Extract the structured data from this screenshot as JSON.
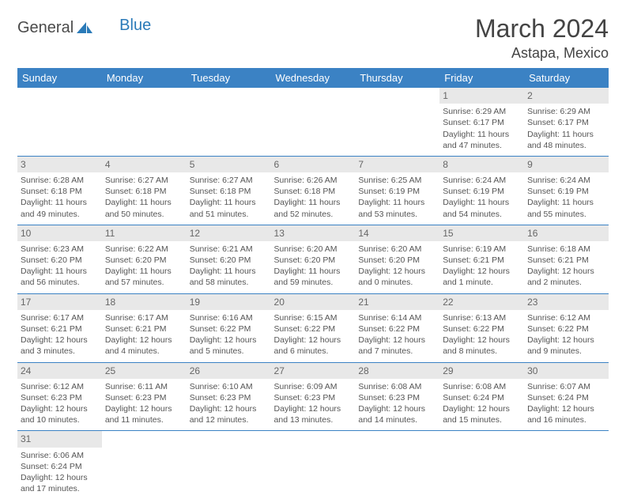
{
  "logo": {
    "text1": "General",
    "text2": "Blue",
    "shape_color": "#2a7ab8"
  },
  "title": "March 2024",
  "location": "Astapa, Mexico",
  "colors": {
    "header_bg": "#3b82c4",
    "header_fg": "#ffffff",
    "daynum_bg": "#e8e8e8",
    "row_border": "#3b82c4",
    "text": "#555555"
  },
  "weekdays": [
    "Sunday",
    "Monday",
    "Tuesday",
    "Wednesday",
    "Thursday",
    "Friday",
    "Saturday"
  ],
  "weeks": [
    [
      null,
      null,
      null,
      null,
      null,
      {
        "n": "1",
        "sr": "Sunrise: 6:29 AM",
        "ss": "Sunset: 6:17 PM",
        "d1": "Daylight: 11 hours",
        "d2": "and 47 minutes."
      },
      {
        "n": "2",
        "sr": "Sunrise: 6:29 AM",
        "ss": "Sunset: 6:17 PM",
        "d1": "Daylight: 11 hours",
        "d2": "and 48 minutes."
      }
    ],
    [
      {
        "n": "3",
        "sr": "Sunrise: 6:28 AM",
        "ss": "Sunset: 6:18 PM",
        "d1": "Daylight: 11 hours",
        "d2": "and 49 minutes."
      },
      {
        "n": "4",
        "sr": "Sunrise: 6:27 AM",
        "ss": "Sunset: 6:18 PM",
        "d1": "Daylight: 11 hours",
        "d2": "and 50 minutes."
      },
      {
        "n": "5",
        "sr": "Sunrise: 6:27 AM",
        "ss": "Sunset: 6:18 PM",
        "d1": "Daylight: 11 hours",
        "d2": "and 51 minutes."
      },
      {
        "n": "6",
        "sr": "Sunrise: 6:26 AM",
        "ss": "Sunset: 6:18 PM",
        "d1": "Daylight: 11 hours",
        "d2": "and 52 minutes."
      },
      {
        "n": "7",
        "sr": "Sunrise: 6:25 AM",
        "ss": "Sunset: 6:19 PM",
        "d1": "Daylight: 11 hours",
        "d2": "and 53 minutes."
      },
      {
        "n": "8",
        "sr": "Sunrise: 6:24 AM",
        "ss": "Sunset: 6:19 PM",
        "d1": "Daylight: 11 hours",
        "d2": "and 54 minutes."
      },
      {
        "n": "9",
        "sr": "Sunrise: 6:24 AM",
        "ss": "Sunset: 6:19 PM",
        "d1": "Daylight: 11 hours",
        "d2": "and 55 minutes."
      }
    ],
    [
      {
        "n": "10",
        "sr": "Sunrise: 6:23 AM",
        "ss": "Sunset: 6:20 PM",
        "d1": "Daylight: 11 hours",
        "d2": "and 56 minutes."
      },
      {
        "n": "11",
        "sr": "Sunrise: 6:22 AM",
        "ss": "Sunset: 6:20 PM",
        "d1": "Daylight: 11 hours",
        "d2": "and 57 minutes."
      },
      {
        "n": "12",
        "sr": "Sunrise: 6:21 AM",
        "ss": "Sunset: 6:20 PM",
        "d1": "Daylight: 11 hours",
        "d2": "and 58 minutes."
      },
      {
        "n": "13",
        "sr": "Sunrise: 6:20 AM",
        "ss": "Sunset: 6:20 PM",
        "d1": "Daylight: 11 hours",
        "d2": "and 59 minutes."
      },
      {
        "n": "14",
        "sr": "Sunrise: 6:20 AM",
        "ss": "Sunset: 6:20 PM",
        "d1": "Daylight: 12 hours",
        "d2": "and 0 minutes."
      },
      {
        "n": "15",
        "sr": "Sunrise: 6:19 AM",
        "ss": "Sunset: 6:21 PM",
        "d1": "Daylight: 12 hours",
        "d2": "and 1 minute."
      },
      {
        "n": "16",
        "sr": "Sunrise: 6:18 AM",
        "ss": "Sunset: 6:21 PM",
        "d1": "Daylight: 12 hours",
        "d2": "and 2 minutes."
      }
    ],
    [
      {
        "n": "17",
        "sr": "Sunrise: 6:17 AM",
        "ss": "Sunset: 6:21 PM",
        "d1": "Daylight: 12 hours",
        "d2": "and 3 minutes."
      },
      {
        "n": "18",
        "sr": "Sunrise: 6:17 AM",
        "ss": "Sunset: 6:21 PM",
        "d1": "Daylight: 12 hours",
        "d2": "and 4 minutes."
      },
      {
        "n": "19",
        "sr": "Sunrise: 6:16 AM",
        "ss": "Sunset: 6:22 PM",
        "d1": "Daylight: 12 hours",
        "d2": "and 5 minutes."
      },
      {
        "n": "20",
        "sr": "Sunrise: 6:15 AM",
        "ss": "Sunset: 6:22 PM",
        "d1": "Daylight: 12 hours",
        "d2": "and 6 minutes."
      },
      {
        "n": "21",
        "sr": "Sunrise: 6:14 AM",
        "ss": "Sunset: 6:22 PM",
        "d1": "Daylight: 12 hours",
        "d2": "and 7 minutes."
      },
      {
        "n": "22",
        "sr": "Sunrise: 6:13 AM",
        "ss": "Sunset: 6:22 PM",
        "d1": "Daylight: 12 hours",
        "d2": "and 8 minutes."
      },
      {
        "n": "23",
        "sr": "Sunrise: 6:12 AM",
        "ss": "Sunset: 6:22 PM",
        "d1": "Daylight: 12 hours",
        "d2": "and 9 minutes."
      }
    ],
    [
      {
        "n": "24",
        "sr": "Sunrise: 6:12 AM",
        "ss": "Sunset: 6:23 PM",
        "d1": "Daylight: 12 hours",
        "d2": "and 10 minutes."
      },
      {
        "n": "25",
        "sr": "Sunrise: 6:11 AM",
        "ss": "Sunset: 6:23 PM",
        "d1": "Daylight: 12 hours",
        "d2": "and 11 minutes."
      },
      {
        "n": "26",
        "sr": "Sunrise: 6:10 AM",
        "ss": "Sunset: 6:23 PM",
        "d1": "Daylight: 12 hours",
        "d2": "and 12 minutes."
      },
      {
        "n": "27",
        "sr": "Sunrise: 6:09 AM",
        "ss": "Sunset: 6:23 PM",
        "d1": "Daylight: 12 hours",
        "d2": "and 13 minutes."
      },
      {
        "n": "28",
        "sr": "Sunrise: 6:08 AM",
        "ss": "Sunset: 6:23 PM",
        "d1": "Daylight: 12 hours",
        "d2": "and 14 minutes."
      },
      {
        "n": "29",
        "sr": "Sunrise: 6:08 AM",
        "ss": "Sunset: 6:24 PM",
        "d1": "Daylight: 12 hours",
        "d2": "and 15 minutes."
      },
      {
        "n": "30",
        "sr": "Sunrise: 6:07 AM",
        "ss": "Sunset: 6:24 PM",
        "d1": "Daylight: 12 hours",
        "d2": "and 16 minutes."
      }
    ],
    [
      {
        "n": "31",
        "sr": "Sunrise: 6:06 AM",
        "ss": "Sunset: 6:24 PM",
        "d1": "Daylight: 12 hours",
        "d2": "and 17 minutes."
      },
      null,
      null,
      null,
      null,
      null,
      null
    ]
  ]
}
